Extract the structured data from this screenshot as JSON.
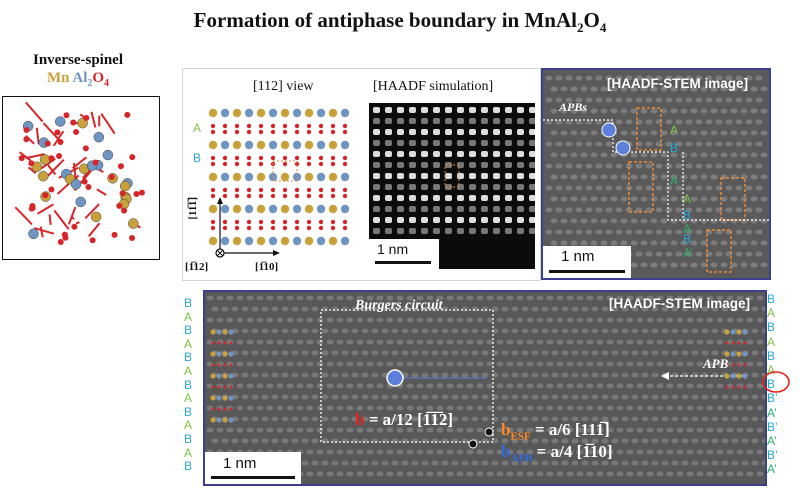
{
  "title": {
    "prefix": "Formation of antiphase boundary in MnAl",
    "sub1": "2",
    "mid": "O",
    "sub2": "4"
  },
  "spinel": {
    "heading": "Inverse-spinel",
    "legend": {
      "mn": "Mn",
      "al": "Al",
      "al_sub": "2",
      "o": "O",
      "o_sub": "4"
    },
    "colors": {
      "mn": "#c9a13a",
      "al": "#6f95c3",
      "o": "#d6262a"
    }
  },
  "view": {
    "label": "[112] view",
    "sim_label": "[HAADF simulation]",
    "scale": "1 nm",
    "axis_vertical": "[11̅1̅]",
    "axis_horizontal": "[1̅10]",
    "axis_origin": "[1̅12]",
    "layers": [
      "A",
      "B"
    ]
  },
  "stem_top": {
    "title": "[HAADF-STEM image]",
    "apb_label": "APBs",
    "scale": "1 nm",
    "labels": [
      "A",
      "B",
      "A",
      "A",
      "B",
      "A",
      "B",
      "A’"
    ]
  },
  "stem_bottom": {
    "title": "[HAADF-STEM image]",
    "circuit_label": "Burgers circuit",
    "apb_label": "APB",
    "scale": "1 nm",
    "left_labels": [
      "B",
      "A",
      "B",
      "A",
      "B",
      "A",
      "B",
      "A",
      "B",
      "A",
      "B",
      "A",
      "B"
    ],
    "right_labels": [
      "B",
      "A",
      "B",
      "A",
      "B",
      "A",
      "B",
      "B’",
      "A’",
      "B’",
      "A’",
      "B’",
      "A’"
    ],
    "eq_b": {
      "sym": "b",
      "text": " = a/12 [1̅1̅2]"
    },
    "eq_esf": {
      "sym": "b",
      "sub": "ESF",
      "text": " = a/6 [111̅]"
    },
    "eq_apb": {
      "sym": "b",
      "sub": "APB",
      "text": " = a/4 [1̅10]"
    }
  }
}
